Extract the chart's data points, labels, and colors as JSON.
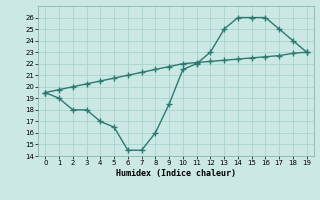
{
  "x": [
    0,
    1,
    2,
    3,
    4,
    5,
    6,
    7,
    8,
    9,
    10,
    11,
    12,
    13,
    14,
    15,
    16,
    17,
    18,
    19
  ],
  "y_curve": [
    19.5,
    19.0,
    18.0,
    18.0,
    17.0,
    16.5,
    14.5,
    14.5,
    16.0,
    18.5,
    21.5,
    22.0,
    23.0,
    25.0,
    26.0,
    26.0,
    26.0,
    25.0,
    24.0,
    23.0
  ],
  "y_line": [
    19.5,
    19.75,
    20.0,
    20.25,
    20.5,
    20.75,
    21.0,
    21.25,
    21.5,
    21.75,
    22.0,
    22.1,
    22.2,
    22.3,
    22.4,
    22.5,
    22.6,
    22.7,
    22.9,
    23.0
  ],
  "line_color": "#2a7a72",
  "bg_color": "#cce8e4",
  "grid_color": "#aad4ce",
  "xlabel": "Humidex (Indice chaleur)",
  "ylim": [
    14,
    27
  ],
  "xlim": [
    -0.5,
    19.5
  ],
  "yticks": [
    14,
    15,
    16,
    17,
    18,
    19,
    20,
    21,
    22,
    23,
    24,
    25,
    26
  ],
  "xticks": [
    0,
    1,
    2,
    3,
    4,
    5,
    6,
    7,
    8,
    9,
    10,
    11,
    12,
    13,
    14,
    15,
    16,
    17,
    18,
    19
  ],
  "marker": "+",
  "markersize": 4,
  "linewidth": 1.0
}
